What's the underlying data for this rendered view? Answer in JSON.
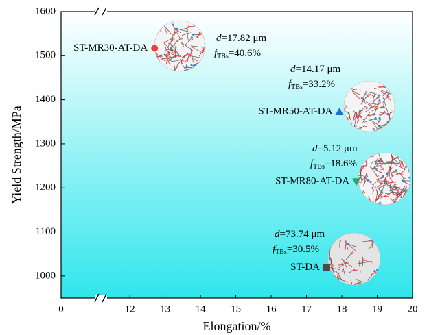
{
  "chart_data": {
    "type": "scatter",
    "x_label": "Elongation/%",
    "y_label": "Yield Strength/MPa",
    "xlim": [
      0,
      20
    ],
    "xbreak": [
      1,
      11.2
    ],
    "ylim": [
      950,
      1600
    ],
    "xticks": [
      0,
      12,
      13,
      14,
      15,
      16,
      17,
      18,
      19,
      20
    ],
    "yticks": [
      1000,
      1100,
      1200,
      1300,
      1400,
      1500,
      1600
    ],
    "series": [
      {
        "name": "ST-MR30-AT-DA",
        "color": "#e8403a",
        "marker": "circle",
        "x": [
          12.7
        ],
        "values": [
          1517
        ]
      },
      {
        "name": "ST-MR50-AT-DA",
        "color": "#1f6fd1",
        "marker": "triangle-up",
        "x": [
          17.93
        ],
        "values": [
          1373
        ]
      },
      {
        "name": "ST-MR80-AT-DA",
        "color": "#2fa36b",
        "marker": "triangle-down",
        "x": [
          18.41
        ],
        "values": [
          1214
        ]
      },
      {
        "name": "ST-DA",
        "color": "#4a4a4a",
        "marker": "square",
        "x": [
          17.57
        ],
        "values": [
          1019
        ]
      }
    ],
    "annotations": [
      {
        "d": "d",
        "d_text": "=17.82 μm",
        "f": "f",
        "f_sub": "TBs",
        "f_text": "=40.6%"
      },
      {
        "d": "d",
        "d_text": "=14.17 μm",
        "f": "f",
        "f_sub": "TBs",
        "f_text": "=33.2%"
      },
      {
        "d": "d",
        "d_text": "=5.12 μm",
        "f": "f",
        "f_sub": "TBs",
        "f_text": "=18.6%"
      },
      {
        "d": "d",
        "d_text": "=73.74 μm",
        "f": "f",
        "f_sub": "TBs",
        "f_text": "=30.5%"
      }
    ]
  }
}
